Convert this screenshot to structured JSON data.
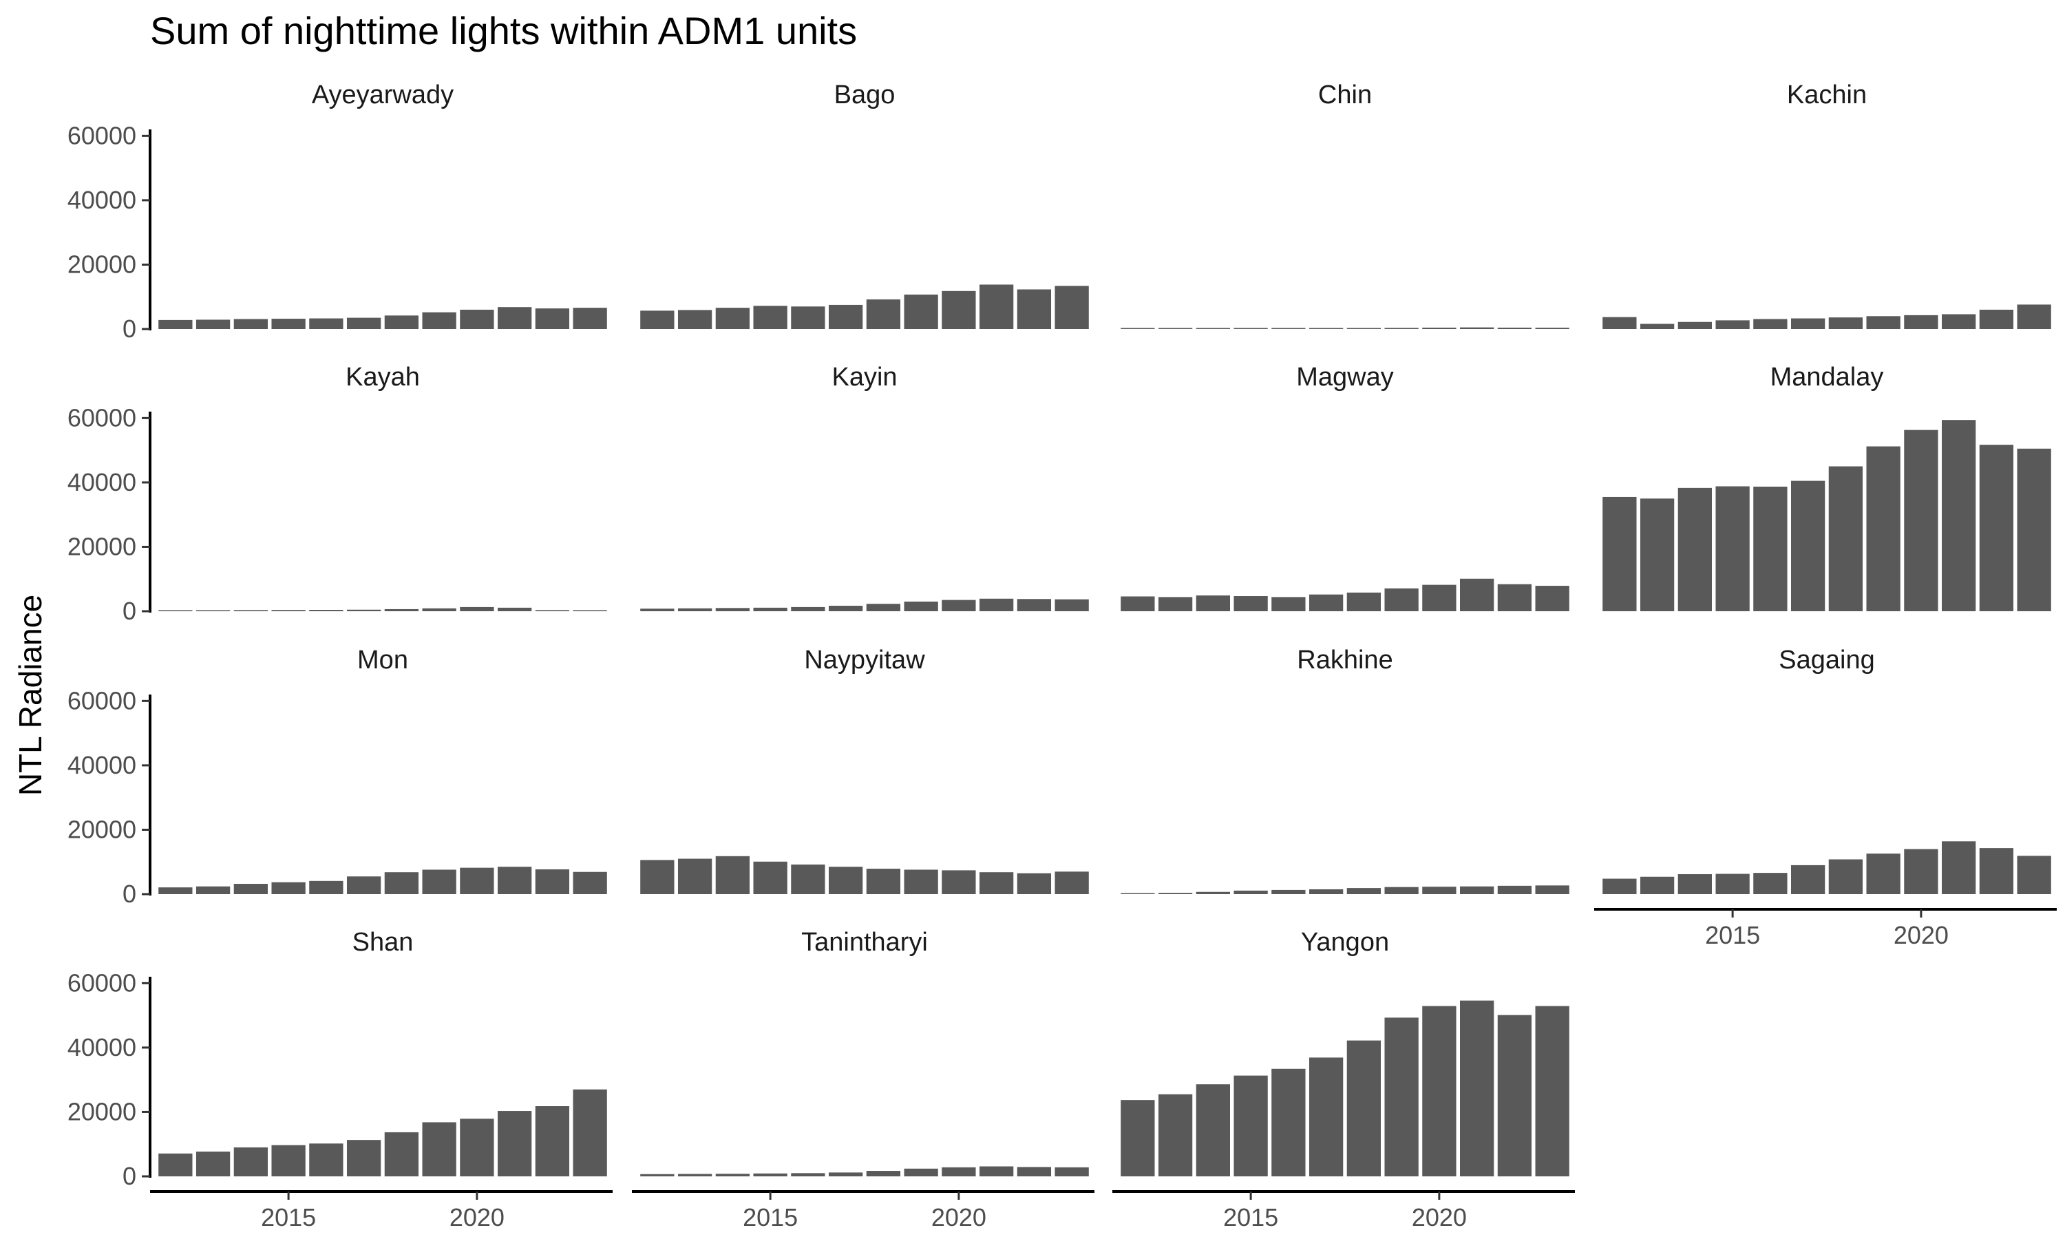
{
  "chart_data": {
    "type": "bar",
    "title": "Sum of nighttime lights within ADM1 units",
    "xlabel": "",
    "ylabel": "NTL Radiance",
    "ylim": [
      0,
      62000
    ],
    "yticks": [
      0,
      20000,
      40000,
      60000
    ],
    "xticks": [
      2015,
      2020
    ],
    "years": [
      2012,
      2013,
      2014,
      2015,
      2016,
      2017,
      2018,
      2019,
      2020,
      2021,
      2022,
      2023
    ],
    "grid": false,
    "bar_color": "#595959",
    "panels": [
      {
        "name": "Ayeyarwady",
        "values": [
          2800,
          2900,
          3100,
          3200,
          3300,
          3500,
          4200,
          5200,
          6000,
          6800,
          6400,
          6600
        ]
      },
      {
        "name": "Bago",
        "values": [
          5700,
          5900,
          6600,
          7200,
          7000,
          7500,
          9200,
          10700,
          11800,
          13800,
          12300,
          13400
        ]
      },
      {
        "name": "Chin",
        "values": [
          50,
          70,
          90,
          120,
          150,
          200,
          280,
          350,
          420,
          500,
          420,
          400
        ]
      },
      {
        "name": "Kachin",
        "values": [
          3700,
          1600,
          2200,
          2700,
          3100,
          3300,
          3600,
          4000,
          4300,
          4600,
          6000,
          7600
        ]
      },
      {
        "name": "Kayah",
        "values": [
          300,
          320,
          350,
          380,
          420,
          480,
          650,
          900,
          1300,
          1100,
          350,
          250
        ]
      },
      {
        "name": "Kayin",
        "values": [
          800,
          900,
          1000,
          1100,
          1300,
          1700,
          2300,
          3000,
          3500,
          3900,
          3800,
          3700
        ]
      },
      {
        "name": "Magway",
        "values": [
          4600,
          4400,
          4900,
          4700,
          4400,
          5200,
          5800,
          7100,
          8200,
          10100,
          8400,
          7900
        ]
      },
      {
        "name": "Mandalay",
        "values": [
          35500,
          35000,
          38300,
          38800,
          38700,
          40500,
          45000,
          51200,
          56300,
          59400,
          51700,
          50500
        ]
      },
      {
        "name": "Mon",
        "values": [
          2100,
          2400,
          3200,
          3700,
          4100,
          5500,
          6800,
          7600,
          8200,
          8500,
          7700,
          6900
        ]
      },
      {
        "name": "Naypyitaw",
        "values": [
          10600,
          11000,
          11800,
          10100,
          9200,
          8500,
          7900,
          7600,
          7400,
          6800,
          6500,
          7000
        ]
      },
      {
        "name": "Rakhine",
        "values": [
          300,
          400,
          700,
          1100,
          1300,
          1500,
          1900,
          2200,
          2300,
          2400,
          2600,
          2700
        ]
      },
      {
        "name": "Sagaing",
        "values": [
          4800,
          5400,
          6200,
          6300,
          6600,
          9000,
          10800,
          12600,
          14000,
          16400,
          14300,
          11900
        ]
      },
      {
        "name": "Shan",
        "values": [
          7100,
          7700,
          9000,
          9700,
          10200,
          11300,
          13700,
          16800,
          17900,
          20300,
          21800,
          27000
        ]
      },
      {
        "name": "Tanintharyi",
        "values": [
          700,
          750,
          800,
          900,
          1000,
          1200,
          1700,
          2400,
          2800,
          3100,
          2900,
          2800
        ]
      },
      {
        "name": "Yangon",
        "values": [
          23700,
          25500,
          28600,
          31300,
          33400,
          36900,
          42200,
          49300,
          52900,
          54600,
          50100,
          52900
        ]
      }
    ]
  }
}
